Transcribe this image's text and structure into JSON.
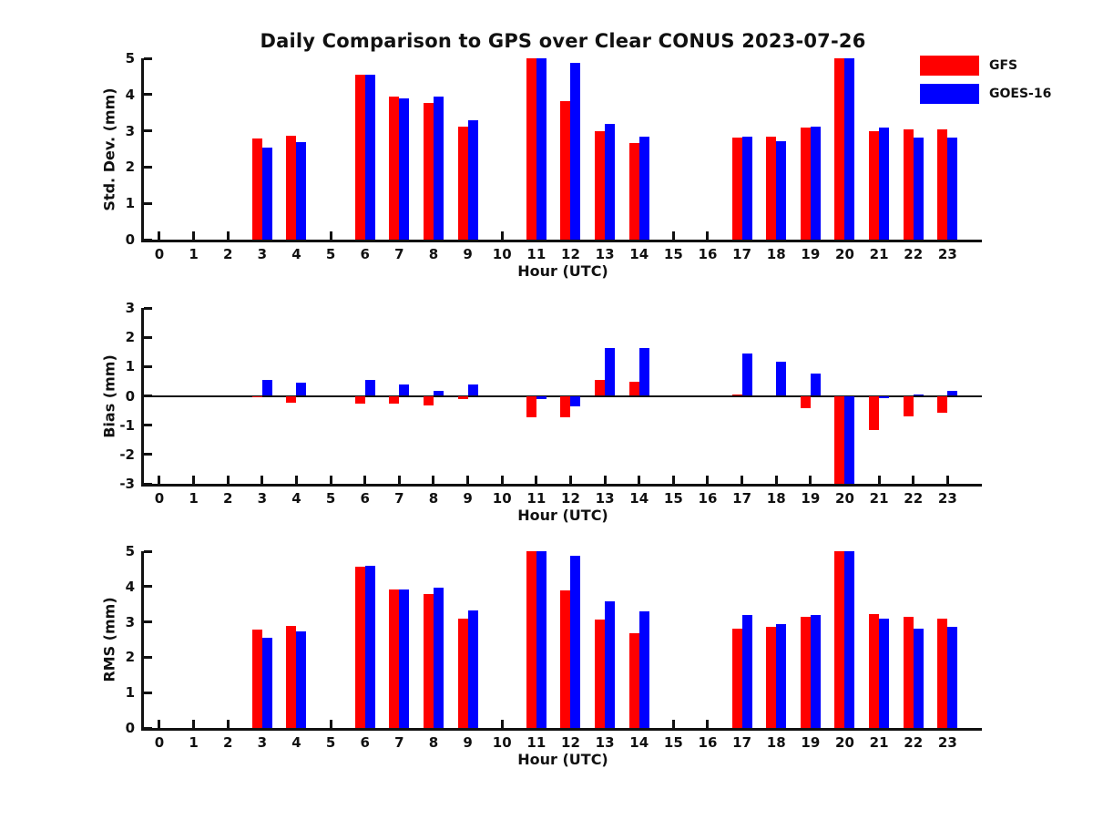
{
  "title": "Daily Comparison to GPS over Clear CONUS 2023-07-26",
  "legend": {
    "items": [
      {
        "label": "GFS",
        "color": "#ff0000"
      },
      {
        "label": "GOES-16",
        "color": "#0000ff"
      }
    ]
  },
  "colors": {
    "gfs": "#ff0000",
    "goes16": "#0000ff",
    "axis": "#111111"
  },
  "chart_data": [
    {
      "type": "bar",
      "panel": "std-dev",
      "ylabel": "Std. Dev. (mm)",
      "xlabel": "Hour (UTC)",
      "ylim": [
        0,
        5
      ],
      "yticks": [
        0,
        1,
        2,
        3,
        4,
        5
      ],
      "categories": [
        0,
        1,
        2,
        3,
        4,
        5,
        6,
        7,
        8,
        9,
        10,
        11,
        12,
        13,
        14,
        15,
        16,
        17,
        18,
        19,
        20,
        21,
        22,
        23
      ],
      "series": [
        {
          "name": "GFS",
          "color": "#ff0000",
          "values": [
            null,
            null,
            null,
            2.8,
            2.87,
            null,
            4.55,
            3.95,
            3.78,
            3.12,
            null,
            5.0,
            3.83,
            3.0,
            2.67,
            null,
            null,
            2.82,
            2.85,
            3.08,
            5.0,
            2.98,
            3.05,
            3.03
          ]
        },
        {
          "name": "GOES-16",
          "color": "#0000ff",
          "values": [
            null,
            null,
            null,
            2.55,
            2.68,
            null,
            4.55,
            3.9,
            3.95,
            3.3,
            null,
            5.0,
            4.87,
            3.2,
            2.85,
            null,
            null,
            2.85,
            2.72,
            3.12,
            5.0,
            3.1,
            2.82,
            2.82
          ]
        }
      ]
    },
    {
      "type": "bar",
      "panel": "bias",
      "ylabel": "Bias (mm)",
      "xlabel": "Hour (UTC)",
      "ylim": [
        -3,
        3
      ],
      "yticks": [
        -3,
        -2,
        -1,
        0,
        1,
        2,
        3
      ],
      "zero_line": true,
      "categories": [
        0,
        1,
        2,
        3,
        4,
        5,
        6,
        7,
        8,
        9,
        10,
        11,
        12,
        13,
        14,
        15,
        16,
        17,
        18,
        19,
        20,
        21,
        22,
        23
      ],
      "series": [
        {
          "name": "GFS",
          "color": "#ff0000",
          "values": [
            null,
            null,
            null,
            -0.04,
            -0.23,
            null,
            -0.26,
            -0.25,
            -0.33,
            -0.1,
            null,
            -0.73,
            -0.73,
            0.55,
            0.47,
            null,
            null,
            0.04,
            0.0,
            -0.42,
            -3.0,
            -1.17,
            -0.7,
            -0.59
          ]
        },
        {
          "name": "GOES-16",
          "color": "#0000ff",
          "values": [
            null,
            null,
            null,
            0.54,
            0.46,
            null,
            0.54,
            0.4,
            0.17,
            0.39,
            null,
            -0.12,
            -0.36,
            1.62,
            1.64,
            null,
            null,
            1.45,
            1.18,
            0.77,
            -3.0,
            -0.08,
            0.05,
            0.16
          ]
        }
      ]
    },
    {
      "type": "bar",
      "panel": "rms",
      "ylabel": "RMS (mm)",
      "xlabel": "Hour (UTC)",
      "ylim": [
        0,
        5
      ],
      "yticks": [
        0,
        1,
        2,
        3,
        4,
        5
      ],
      "categories": [
        0,
        1,
        2,
        3,
        4,
        5,
        6,
        7,
        8,
        9,
        10,
        11,
        12,
        13,
        14,
        15,
        16,
        17,
        18,
        19,
        20,
        21,
        22,
        23
      ],
      "series": [
        {
          "name": "GFS",
          "color": "#ff0000",
          "values": [
            null,
            null,
            null,
            2.78,
            2.88,
            null,
            4.55,
            3.93,
            3.78,
            3.1,
            null,
            5.0,
            3.9,
            3.06,
            2.69,
            null,
            null,
            2.82,
            2.85,
            3.14,
            5.0,
            3.21,
            3.15,
            3.08
          ]
        },
        {
          "name": "GOES-16",
          "color": "#0000ff",
          "values": [
            null,
            null,
            null,
            2.56,
            2.72,
            null,
            4.58,
            3.93,
            3.96,
            3.32,
            null,
            5.0,
            4.88,
            3.57,
            3.29,
            null,
            null,
            3.19,
            2.95,
            3.2,
            5.0,
            3.08,
            2.82,
            2.85
          ]
        }
      ]
    }
  ]
}
